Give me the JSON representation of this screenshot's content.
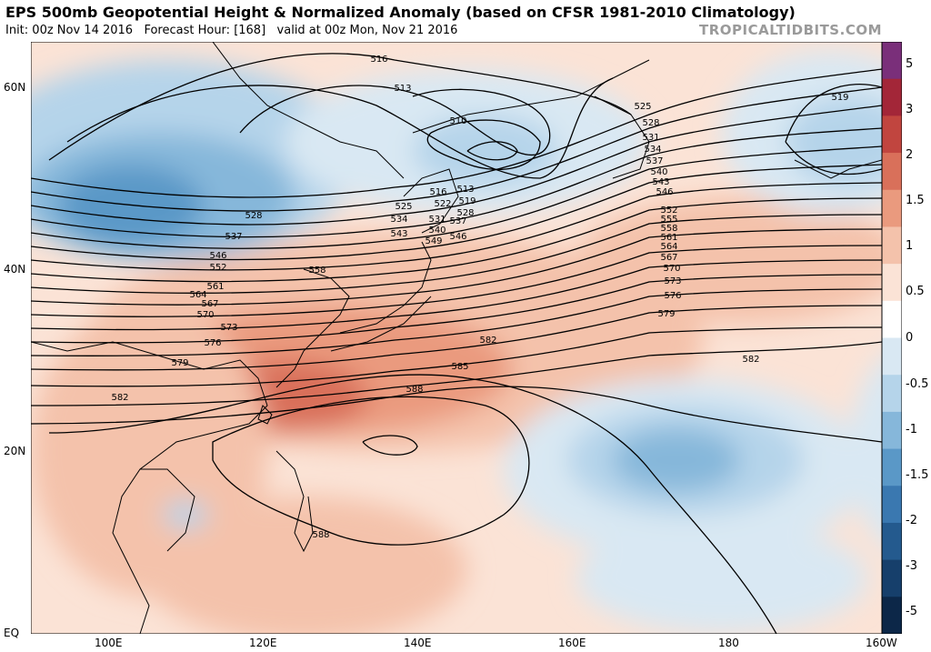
{
  "header": {
    "title": "EPS 500mb Geopotential Height & Normalized Anomaly (based on CFSR 1981-2010 Climatology)",
    "subtitle": "Init: 00z Nov 14 2016   Forecast Hour: [168]   valid at 00z Mon, Nov 21 2016",
    "brand": "TROPICALTIDBITS.COM"
  },
  "axes": {
    "lat_labels": [
      "60N",
      "40N",
      "20N",
      "EQ"
    ],
    "lon_labels": [
      "100E",
      "120E",
      "140E",
      "160E",
      "180",
      "160W"
    ]
  },
  "colorbar": {
    "labels": [
      "5",
      "3",
      "2",
      "1.5",
      "1",
      "0.5",
      "0",
      "-0.5",
      "-1",
      "-1.5",
      "-2",
      "-3",
      "-5"
    ],
    "colors": [
      "#7a2f7a",
      "#a32638",
      "#c1453f",
      "#d9705a",
      "#ea9a7e",
      "#f4c2ab",
      "#fbe3d6",
      "#ffffff",
      "#d9e8f3",
      "#b5d4ea",
      "#86b7da",
      "#5a98c7",
      "#3a78b0",
      "#245a8e",
      "#163f6b",
      "#0c2748"
    ]
  },
  "contours": {
    "labels": [
      "516",
      "513",
      "510",
      "525",
      "528",
      "531",
      "534",
      "537",
      "540",
      "543",
      "546",
      "519",
      "552",
      "555",
      "558",
      "561",
      "564",
      "567",
      "570",
      "573",
      "576",
      "579",
      "582",
      "585",
      "588",
      "522",
      "549"
    ]
  }
}
